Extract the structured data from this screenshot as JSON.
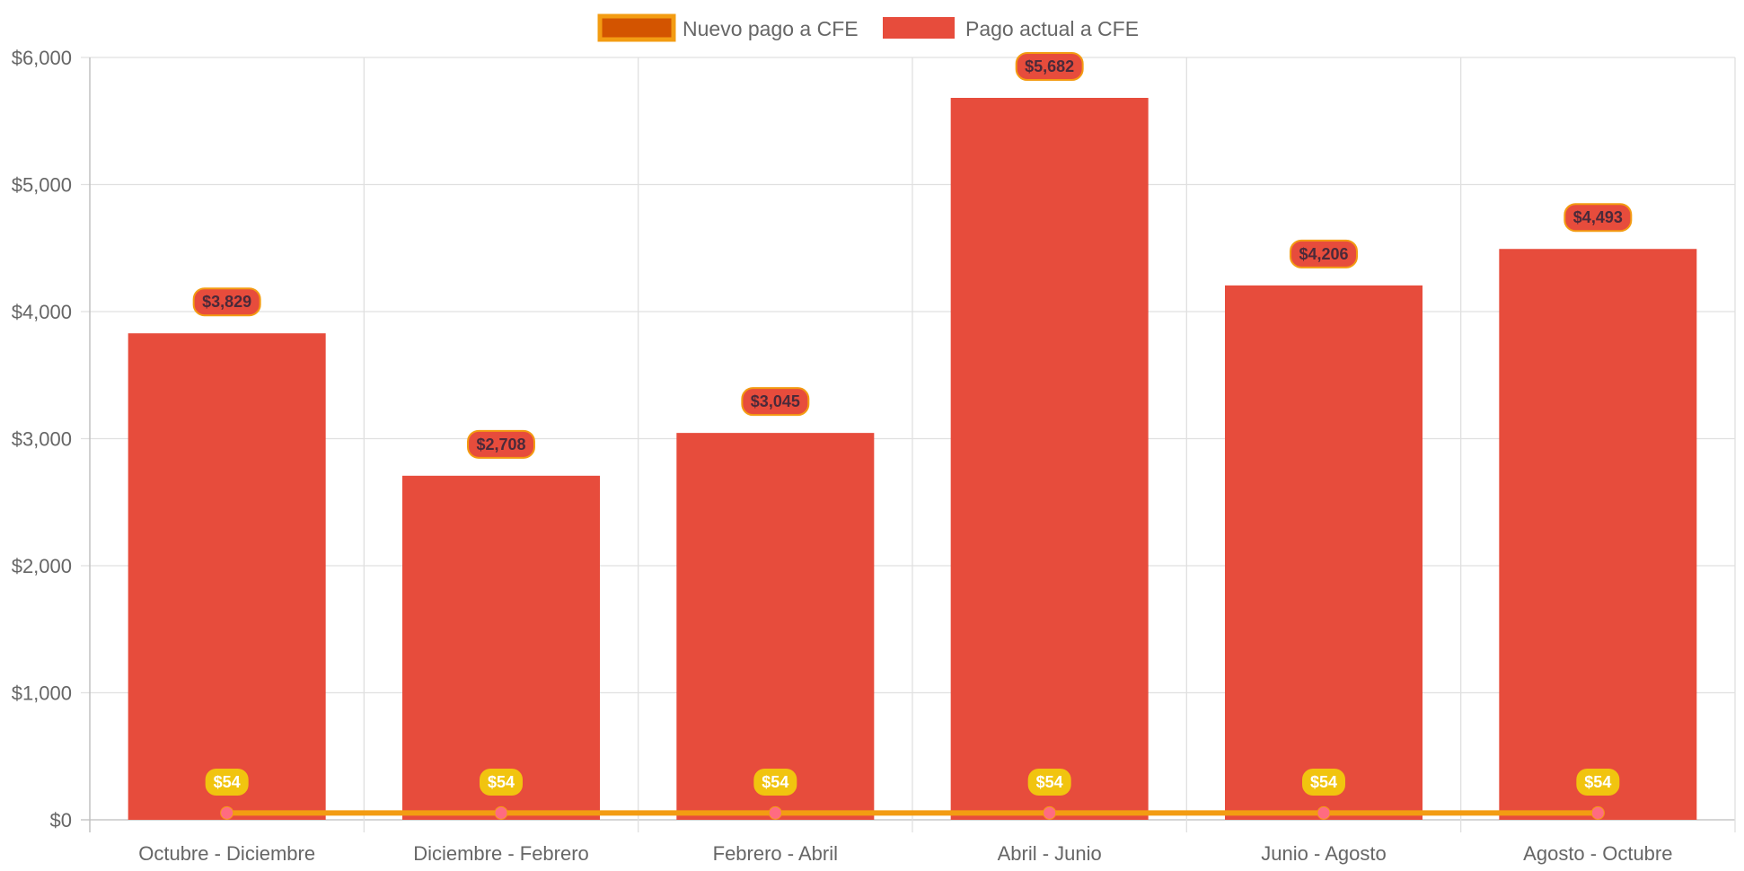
{
  "chart_data": {
    "type": "bar",
    "categories": [
      "Octubre - Diciembre",
      "Diciembre - Febrero",
      "Febrero - Abril",
      "Abril - Junio",
      "Junio - Agosto",
      "Agosto - Octubre"
    ],
    "series": [
      {
        "name": "Nuevo pago a CFE",
        "type": "line",
        "values": [
          54,
          54,
          54,
          54,
          54,
          54
        ],
        "labels": [
          "$54",
          "$54",
          "$54",
          "$54",
          "$54",
          "$54"
        ],
        "color": "#f39c12",
        "label_bg": "#f1c40f",
        "point_color": "#ff6b81",
        "legend_fill": "#d35400"
      },
      {
        "name": "Pago actual a CFE",
        "type": "bar",
        "values": [
          3829,
          2708,
          3045,
          5682,
          4206,
          4493
        ],
        "labels": [
          "$3,829",
          "$2,708",
          "$3,045",
          "$5,682",
          "$4,206",
          "$4,493"
        ],
        "color": "#e74c3c",
        "label_border": "#f39c12"
      }
    ],
    "y_ticks": [
      "$0",
      "$1,000",
      "$2,000",
      "$3,000",
      "$4,000",
      "$5,000",
      "$6,000"
    ],
    "ylim": [
      0,
      6000
    ],
    "grid": true,
    "legend_position": "top"
  }
}
